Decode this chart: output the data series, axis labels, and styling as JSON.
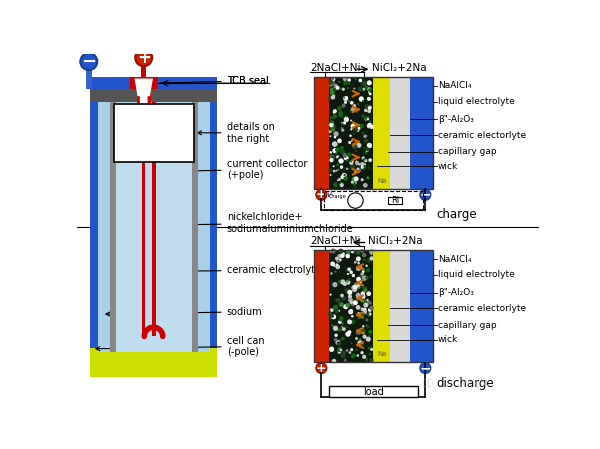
{
  "bg_color": "#ffffff",
  "battery": {
    "outer_color": "#2255cc",
    "sodium_color": "#a8d0e8",
    "ceramic_color": "#888888",
    "inner_color": "#c0ddf0",
    "rod_color": "#cc0000",
    "yellow_color": "#ccdd00",
    "neg_pole_color": "#2255cc",
    "pos_pole_color": "#cc2200"
  },
  "cell": {
    "red_color": "#cc2200",
    "dark_color": "#111111",
    "yellow_color": "#cccc00",
    "white_color": "#d8d8d8",
    "blue_color": "#2255cc",
    "arrow_color": "#cc6600"
  },
  "labels_left": [
    "TCB seal",
    "details on\nthe right",
    "current collector\n(+pole)",
    "nickelchloride+\nsodiumaluminiumchloride",
    "ceramic electrolyte",
    "sodium",
    "cell can\n(-pole)"
  ],
  "labels_right": [
    "NaAlCl₄",
    "liquid electrolyte",
    "β\"-Al₂O₃",
    "ceramic electorlyte",
    "capillary gap",
    "wick"
  ],
  "rxn_charge": "2NaCl+Ni → NiCl₂+2Na",
  "rxn_discharge": "2NaCl+Ni ← NiCl₂+2Na",
  "charge_label": "charge",
  "discharge_label": "discharge",
  "load_label": "load"
}
